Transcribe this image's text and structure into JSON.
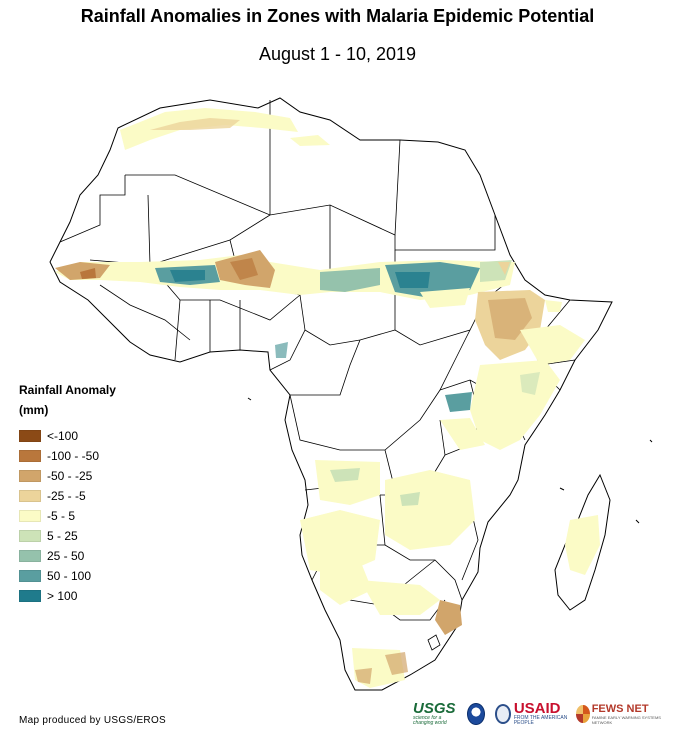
{
  "header": {
    "title": "Rainfall Anomalies in Zones with Malaria Epidemic Potential",
    "subtitle": "August 1 - 10, 2019"
  },
  "legend": {
    "title": "Rainfall Anomaly",
    "units": "(mm)",
    "classes": [
      {
        "label": "<-100",
        "color": "#8b4a16"
      },
      {
        "label": "-100 - -50",
        "color": "#b9773c"
      },
      {
        "label": "-50 - -25",
        "color": "#d1a56b"
      },
      {
        "label": "-25 - -5",
        "color": "#ecd49b"
      },
      {
        "label": "-5 - 5",
        "color": "#fbfbc6"
      },
      {
        "label": "5 - 25",
        "color": "#cde3b8"
      },
      {
        "label": "25 - 50",
        "color": "#95c2ac"
      },
      {
        "label": "50 - 100",
        "color": "#5a9ea0"
      },
      {
        "label": "> 100",
        "color": "#1f7b8c"
      }
    ]
  },
  "footer": {
    "credit": "Map produced by USGS/EROS",
    "logos": {
      "usgs": "USGS",
      "usgs_tagline": "science for a changing world",
      "usaid": "USAID",
      "usaid_tagline": "FROM THE AMERICAN PEOPLE",
      "fews": "FEWS NET",
      "fews_tagline": "FAMINE EARLY WARNING SYSTEMS NETWORK"
    }
  }
}
